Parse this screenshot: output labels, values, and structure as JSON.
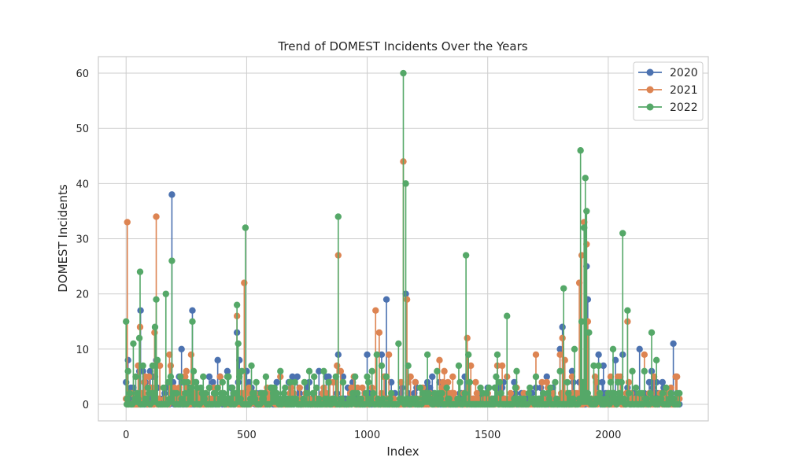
{
  "chart_data": {
    "type": "line",
    "title": "Trend of DOMEST Incidents Over the Years",
    "xlabel": "Index",
    "ylabel": "DOMEST Incidents",
    "xlim": [
      -115,
      2415
    ],
    "ylim": [
      -3,
      63
    ],
    "x_ticks": [
      0,
      500,
      1000,
      1500,
      2000
    ],
    "y_ticks": [
      0,
      10,
      20,
      30,
      40,
      50,
      60
    ],
    "grid": true,
    "legend_position": "top-right",
    "marker": "circle",
    "stems_from_zero": true,
    "n_points": 2300,
    "series": [
      {
        "name": "2020",
        "color": "#4c72b0",
        "peaks": [
          [
            0,
            4
          ],
          [
            8,
            8
          ],
          [
            30,
            3
          ],
          [
            55,
            6
          ],
          [
            60,
            17
          ],
          [
            70,
            6
          ],
          [
            100,
            6
          ],
          [
            125,
            8
          ],
          [
            130,
            3
          ],
          [
            190,
            38
          ],
          [
            230,
            10
          ],
          [
            260,
            3
          ],
          [
            275,
            17
          ],
          [
            290,
            4
          ],
          [
            380,
            8
          ],
          [
            420,
            6
          ],
          [
            460,
            13
          ],
          [
            470,
            8
          ],
          [
            500,
            6
          ],
          [
            520,
            3
          ],
          [
            600,
            3
          ],
          [
            690,
            5
          ],
          [
            710,
            5
          ],
          [
            760,
            4
          ],
          [
            800,
            6
          ],
          [
            830,
            5
          ],
          [
            860,
            4
          ],
          [
            880,
            9
          ],
          [
            900,
            5
          ],
          [
            920,
            3
          ],
          [
            940,
            4
          ],
          [
            1000,
            9
          ],
          [
            1060,
            9
          ],
          [
            1080,
            19
          ],
          [
            1100,
            4
          ],
          [
            1160,
            20
          ],
          [
            1200,
            4
          ],
          [
            1240,
            3
          ],
          [
            1300,
            4
          ],
          [
            1420,
            4
          ],
          [
            1500,
            3
          ],
          [
            1560,
            3
          ],
          [
            1640,
            2
          ],
          [
            1700,
            3
          ],
          [
            1720,
            3
          ],
          [
            1770,
            3
          ],
          [
            1800,
            10
          ],
          [
            1810,
            14
          ],
          [
            1850,
            6
          ],
          [
            1880,
            4
          ],
          [
            1910,
            25
          ],
          [
            1915,
            19
          ],
          [
            1960,
            9
          ],
          [
            1980,
            7
          ],
          [
            2030,
            8
          ],
          [
            2060,
            9
          ],
          [
            2080,
            3
          ],
          [
            2130,
            10
          ],
          [
            2180,
            6
          ],
          [
            2200,
            4
          ],
          [
            2230,
            3
          ],
          [
            2270,
            11
          ]
        ]
      },
      {
        "name": "2021",
        "color": "#dd8452",
        "peaks": [
          [
            5,
            33
          ],
          [
            15,
            2
          ],
          [
            50,
            7
          ],
          [
            58,
            14
          ],
          [
            75,
            4
          ],
          [
            95,
            5
          ],
          [
            118,
            13
          ],
          [
            125,
            34
          ],
          [
            140,
            7
          ],
          [
            180,
            9
          ],
          [
            185,
            7
          ],
          [
            200,
            3
          ],
          [
            220,
            3
          ],
          [
            250,
            6
          ],
          [
            270,
            9
          ],
          [
            285,
            2
          ],
          [
            300,
            2
          ],
          [
            390,
            5
          ],
          [
            460,
            16
          ],
          [
            475,
            2
          ],
          [
            490,
            22
          ],
          [
            510,
            3
          ],
          [
            560,
            2
          ],
          [
            600,
            2
          ],
          [
            640,
            5
          ],
          [
            680,
            2
          ],
          [
            720,
            3
          ],
          [
            780,
            2
          ],
          [
            860,
            4
          ],
          [
            875,
            7
          ],
          [
            880,
            27
          ],
          [
            890,
            6
          ],
          [
            960,
            3
          ],
          [
            980,
            3
          ],
          [
            1020,
            3
          ],
          [
            1035,
            17
          ],
          [
            1050,
            13
          ],
          [
            1070,
            5
          ],
          [
            1090,
            9
          ],
          [
            1140,
            4
          ],
          [
            1150,
            44
          ],
          [
            1165,
            19
          ],
          [
            1180,
            5
          ],
          [
            1200,
            4
          ],
          [
            1230,
            3
          ],
          [
            1260,
            2
          ],
          [
            1300,
            8
          ],
          [
            1320,
            6
          ],
          [
            1400,
            2
          ],
          [
            1415,
            12
          ],
          [
            1430,
            7
          ],
          [
            1540,
            7
          ],
          [
            1560,
            7
          ],
          [
            1580,
            5
          ],
          [
            1620,
            3
          ],
          [
            1700,
            9
          ],
          [
            1750,
            3
          ],
          [
            1800,
            9
          ],
          [
            1810,
            12
          ],
          [
            1820,
            8
          ],
          [
            1850,
            5
          ],
          [
            1880,
            22
          ],
          [
            1890,
            27
          ],
          [
            1900,
            33
          ],
          [
            1910,
            29
          ],
          [
            1915,
            15
          ],
          [
            1950,
            4
          ],
          [
            2010,
            5
          ],
          [
            2050,
            5
          ],
          [
            2080,
            15
          ],
          [
            2150,
            9
          ],
          [
            2190,
            5
          ],
          [
            2220,
            2
          ],
          [
            2260,
            3
          ],
          [
            2280,
            5
          ]
        ]
      },
      {
        "name": "2022",
        "color": "#55a868",
        "peaks": [
          [
            0,
            15
          ],
          [
            3,
            0
          ],
          [
            8,
            6
          ],
          [
            30,
            11
          ],
          [
            40,
            5
          ],
          [
            55,
            12
          ],
          [
            58,
            24
          ],
          [
            70,
            7
          ],
          [
            90,
            3
          ],
          [
            110,
            7
          ],
          [
            120,
            14
          ],
          [
            125,
            19
          ],
          [
            130,
            8
          ],
          [
            165,
            20
          ],
          [
            175,
            4
          ],
          [
            190,
            26
          ],
          [
            210,
            2
          ],
          [
            225,
            5
          ],
          [
            240,
            4
          ],
          [
            255,
            4
          ],
          [
            275,
            15
          ],
          [
            280,
            6
          ],
          [
            290,
            4
          ],
          [
            310,
            3
          ],
          [
            330,
            2
          ],
          [
            380,
            3
          ],
          [
            400,
            4
          ],
          [
            420,
            5
          ],
          [
            440,
            3
          ],
          [
            460,
            18
          ],
          [
            465,
            11
          ],
          [
            480,
            6
          ],
          [
            495,
            32
          ],
          [
            520,
            7
          ],
          [
            540,
            4
          ],
          [
            560,
            2
          ],
          [
            580,
            5
          ],
          [
            600,
            3
          ],
          [
            640,
            6
          ],
          [
            660,
            3
          ],
          [
            700,
            4
          ],
          [
            740,
            4
          ],
          [
            760,
            6
          ],
          [
            790,
            3
          ],
          [
            820,
            6
          ],
          [
            840,
            4
          ],
          [
            870,
            5
          ],
          [
            880,
            34
          ],
          [
            900,
            4
          ],
          [
            950,
            5
          ],
          [
            1000,
            5
          ],
          [
            1020,
            6
          ],
          [
            1040,
            9
          ],
          [
            1060,
            7
          ],
          [
            1080,
            5
          ],
          [
            1130,
            11
          ],
          [
            1150,
            60
          ],
          [
            1160,
            40
          ],
          [
            1170,
            7
          ],
          [
            1220,
            3
          ],
          [
            1250,
            9
          ],
          [
            1290,
            6
          ],
          [
            1330,
            3
          ],
          [
            1380,
            7
          ],
          [
            1410,
            27
          ],
          [
            1420,
            9
          ],
          [
            1470,
            3
          ],
          [
            1530,
            3
          ],
          [
            1540,
            9
          ],
          [
            1550,
            4
          ],
          [
            1580,
            16
          ],
          [
            1620,
            6
          ],
          [
            1700,
            5
          ],
          [
            1760,
            3
          ],
          [
            1800,
            6
          ],
          [
            1815,
            21
          ],
          [
            1830,
            4
          ],
          [
            1860,
            10
          ],
          [
            1885,
            46
          ],
          [
            1890,
            15
          ],
          [
            1900,
            32
          ],
          [
            1905,
            41
          ],
          [
            1910,
            35
          ],
          [
            1920,
            13
          ],
          [
            1940,
            7
          ],
          [
            1960,
            7
          ],
          [
            2010,
            4
          ],
          [
            2020,
            10
          ],
          [
            2040,
            4
          ],
          [
            2060,
            31
          ],
          [
            2080,
            17
          ],
          [
            2100,
            6
          ],
          [
            2150,
            6
          ],
          [
            2180,
            13
          ],
          [
            2200,
            8
          ],
          [
            2240,
            3
          ],
          [
            2260,
            2
          ],
          [
            2280,
            0
          ],
          [
            2290,
            0
          ]
        ]
      }
    ]
  }
}
